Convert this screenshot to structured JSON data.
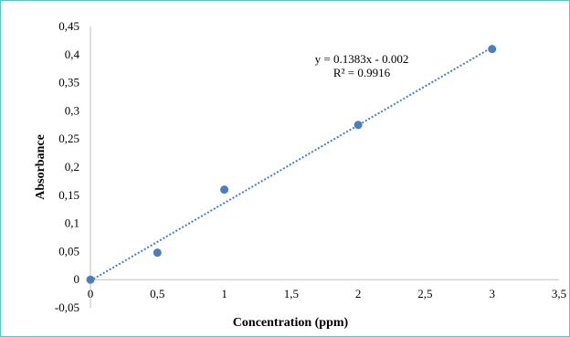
{
  "chart_data": {
    "type": "scatter",
    "xlabel": "Concentration (ppm)",
    "ylabel": "Absorbance",
    "xlim": [
      0,
      3.5
    ],
    "ylim": [
      -0.05,
      0.45
    ],
    "x_ticks": [
      "0",
      "0,5",
      "1",
      "1,5",
      "2",
      "2,5",
      "3",
      "3,5"
    ],
    "y_ticks": [
      "-0,05",
      "0",
      "0,05",
      "0,1",
      "0,15",
      "0,2",
      "0,25",
      "0,3",
      "0,35",
      "0,4",
      "0,45"
    ],
    "series": [
      {
        "x": [
          0,
          0.5,
          1,
          2,
          3
        ],
        "y": [
          0,
          0.048,
          0.16,
          0.275,
          0.41
        ],
        "color": "#4a7ebf"
      }
    ],
    "trendline": {
      "type": "linear",
      "slope": 0.1383,
      "intercept": -0.002,
      "color": "#4a7ebf",
      "style": "dotted"
    },
    "equation_text": "y = 0.1383x - 0.002",
    "r2_text": "R² = 0.9916",
    "grid": false
  }
}
